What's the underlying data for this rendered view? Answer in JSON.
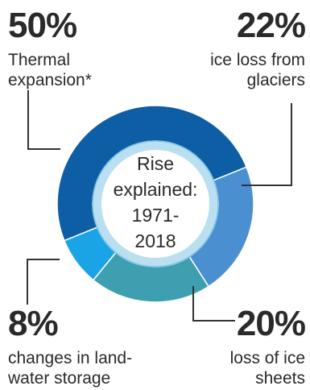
{
  "center": {
    "line1": "Rise",
    "line2": "explained:",
    "line3": "1971-",
    "line4": "2018"
  },
  "chart_data": {
    "type": "pie",
    "style": "donut",
    "title": "",
    "center_label": "Rise explained: 1971-2018",
    "slices": [
      {
        "name": "Thermal expansion*",
        "value": 50,
        "label": "50%",
        "color": "#0d5ea4"
      },
      {
        "name": "ice loss from glaciers",
        "value": 22,
        "label": "22%",
        "color": "#4a8fd0"
      },
      {
        "name": "loss of ice sheets",
        "value": 20,
        "label": "20%",
        "color": "#3e9fb0"
      },
      {
        "name": "changes in land-water storage",
        "value": 8,
        "label": "8%",
        "color": "#1aa4e6"
      }
    ]
  },
  "labels": {
    "thermal": {
      "pct": "50%",
      "line1": "Thermal",
      "line2": "expansion*"
    },
    "glaciers": {
      "pct": "22%",
      "line1": "ice loss from",
      "line2": "glaciers"
    },
    "sheets": {
      "pct": "20%",
      "line1": "loss of ice",
      "line2": "sheets"
    },
    "land": {
      "pct": "8%",
      "line1": "changes in land-",
      "line2": "water storage"
    }
  },
  "colors": {
    "inner_ring": "#b9dff0",
    "inner_ring_stroke": "#7fc4e2",
    "leader": "#333333"
  }
}
